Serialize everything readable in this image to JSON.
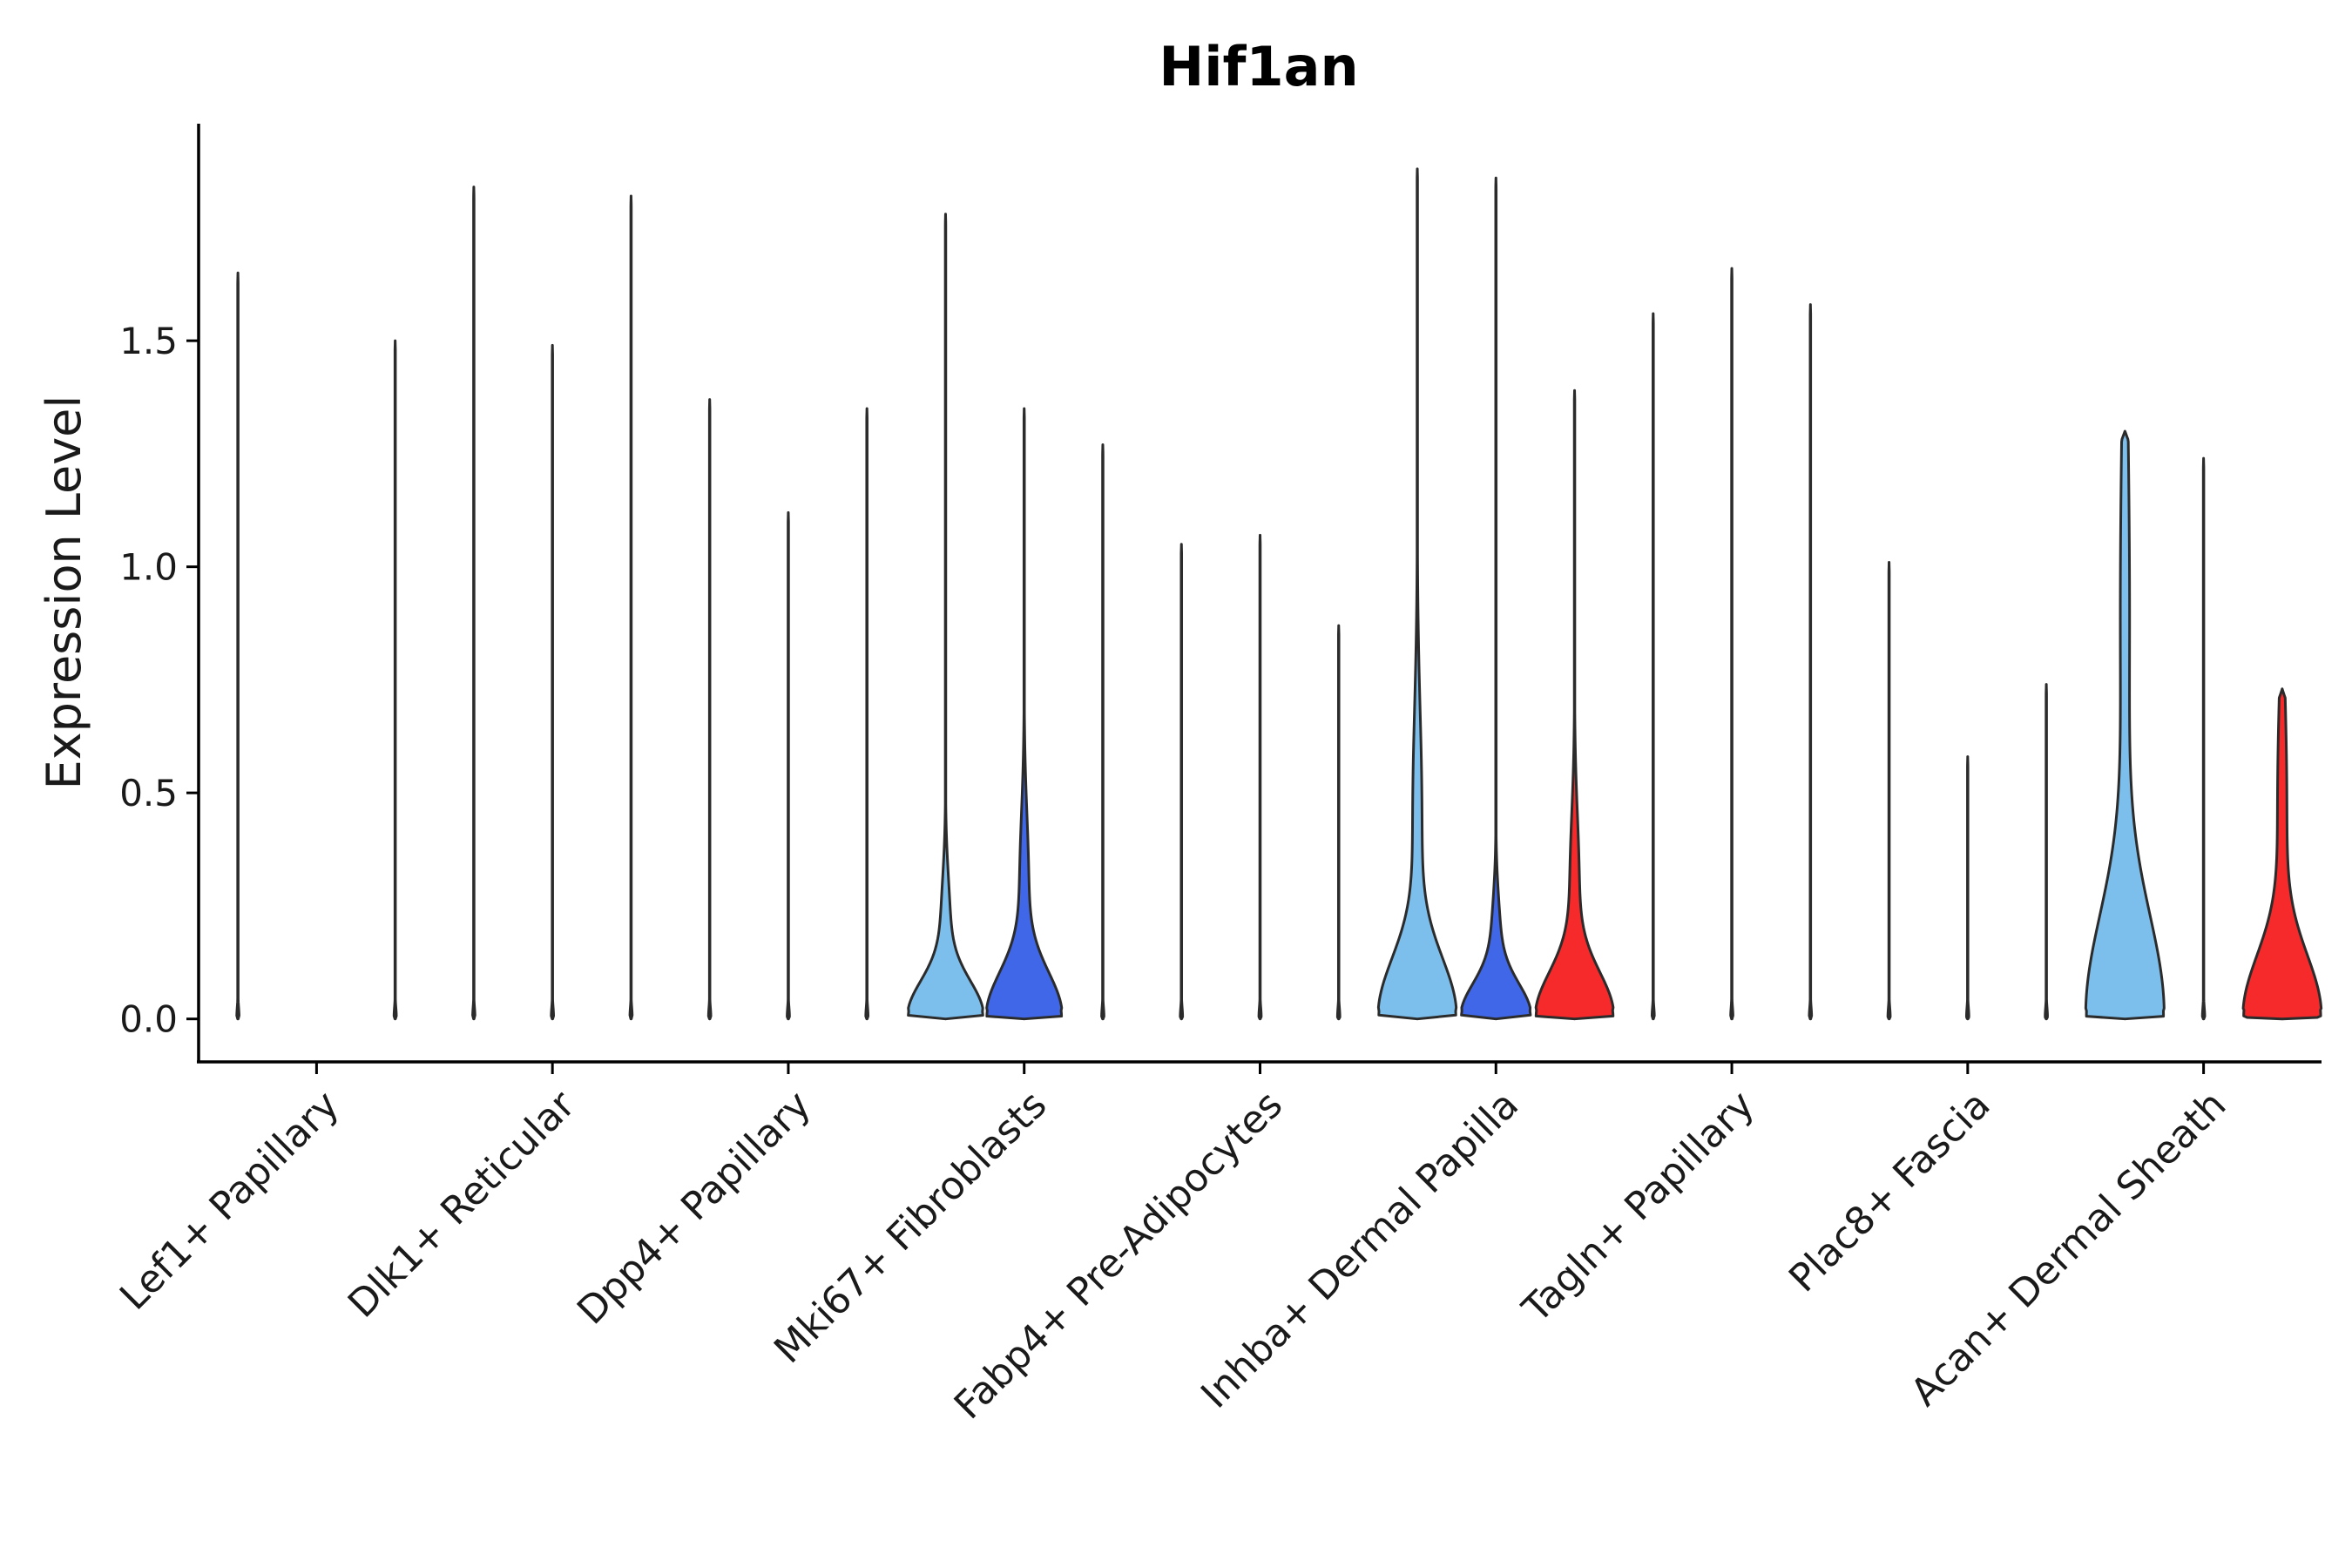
{
  "chart_data": {
    "type": "violin",
    "title": "Hif1an",
    "xlabel": "",
    "ylabel": "Expression Level",
    "ylim": [
      -0.095,
      1.98
    ],
    "yticks": [
      0.0,
      0.5,
      1.0,
      1.5
    ],
    "ytick_labels": [
      "0.0",
      "0.5",
      "1.0",
      "1.5"
    ],
    "grid": false,
    "legend": "none",
    "colors": {
      "light_blue": "#7dbfec",
      "blue": "#3f67e8",
      "red": "#f62a2a",
      "outline": "#2b2b2b"
    },
    "categories": [
      "Lef1+ Papillary",
      "Dlk1+ Reticular",
      "Dpp4+ Papillary",
      "Mki67+ Fibroblasts",
      "Fabp4+ Pre-Adipocytes",
      "Inhba+ Dermal Papilla",
      "Tagln+ Papillary",
      "Plac8+ Fascia",
      "Acan+ Dermal Sheath"
    ],
    "groups": [
      {
        "category": "Lef1+ Papillary",
        "violins": [
          {
            "color": "light_blue",
            "max": 1.65,
            "base_width": 0.03,
            "bump": 0
          },
          {
            "color": "red",
            "max": 1.5,
            "base_width": 0.03,
            "bump": 0
          }
        ]
      },
      {
        "category": "Dlk1+ Reticular",
        "violins": [
          {
            "color": "light_blue",
            "max": 1.84,
            "base_width": 0.03,
            "bump": 0
          },
          {
            "color": "blue",
            "max": 1.49,
            "base_width": 0.03,
            "bump": 0
          },
          {
            "color": "red",
            "max": 1.82,
            "base_width": 0.03,
            "bump": 0
          }
        ]
      },
      {
        "category": "Dpp4+ Papillary",
        "violins": [
          {
            "color": "light_blue",
            "max": 1.37,
            "base_width": 0.03,
            "bump": 0
          },
          {
            "color": "blue",
            "max": 1.12,
            "base_width": 0.03,
            "bump": 0
          },
          {
            "color": "red",
            "max": 1.35,
            "base_width": 0.03,
            "bump": 0
          }
        ]
      },
      {
        "category": "Mki67+ Fibroblasts",
        "violins": [
          {
            "color": "light_blue",
            "max": 1.78,
            "base_width": 0.95,
            "bump": 0.07
          },
          {
            "color": "blue",
            "max": 1.35,
            "base_width": 0.95,
            "bump": 0.1
          },
          {
            "color": "red",
            "max": 1.27,
            "base_width": 0.03,
            "bump": 0
          }
        ]
      },
      {
        "category": "Fabp4+ Pre-Adipocytes",
        "violins": [
          {
            "color": "light_blue",
            "max": 1.05,
            "base_width": 0.03,
            "bump": 0
          },
          {
            "color": "blue",
            "max": 1.07,
            "base_width": 0.03,
            "bump": 0
          },
          {
            "color": "red",
            "max": 0.87,
            "base_width": 0.03,
            "bump": 0
          }
        ]
      },
      {
        "category": "Inhba+ Dermal Papilla",
        "violins": [
          {
            "color": "light_blue",
            "max": 1.88,
            "base_width": 0.98,
            "bump": 0.15
          },
          {
            "color": "blue",
            "max": 1.86,
            "base_width": 0.88,
            "bump": 0.06
          },
          {
            "color": "red",
            "max": 1.39,
            "base_width": 0.98,
            "bump": 0.1
          }
        ]
      },
      {
        "category": "Tagln+ Papillary",
        "violins": [
          {
            "color": "light_blue",
            "max": 1.56,
            "base_width": 0.03,
            "bump": 0
          },
          {
            "color": "blue",
            "max": 1.66,
            "base_width": 0.03,
            "bump": 0
          },
          {
            "color": "red",
            "max": 1.58,
            "base_width": 0.03,
            "bump": 0
          }
        ]
      },
      {
        "category": "Plac8+ Fascia",
        "violins": [
          {
            "color": "light_blue",
            "max": 1.01,
            "base_width": 0.03,
            "bump": 0
          },
          {
            "color": "blue",
            "max": 0.58,
            "base_width": 0.03,
            "bump": 0
          },
          {
            "color": "red",
            "max": 0.74,
            "base_width": 0.03,
            "bump": 0
          }
        ]
      },
      {
        "category": "Acan+ Dermal Sheath",
        "violins": [
          {
            "color": "light_blue",
            "max": 1.3,
            "base_width": 0.98,
            "bump": 0.3
          },
          {
            "color": "blue",
            "max": 1.24,
            "base_width": 0.03,
            "bump": 0
          },
          {
            "color": "red",
            "max": 0.73,
            "base_width": 0.98,
            "bump": 0.16
          }
        ]
      }
    ]
  }
}
